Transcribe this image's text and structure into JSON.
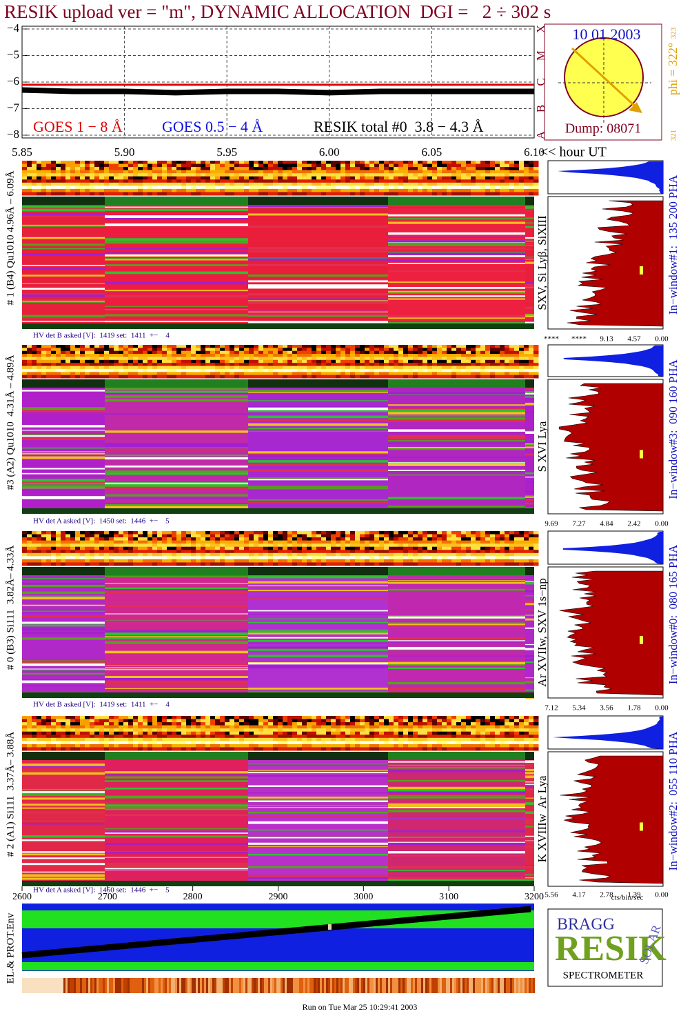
{
  "title": "RESIK upload ver = \"m\", DYNAMIC ALLOCATION  DGI =   2 ÷ 302 s",
  "goes": {
    "ylim": [
      -8,
      -4
    ],
    "yticks": [
      {
        "value": -4,
        "label": "−4"
      },
      {
        "value": -5,
        "label": "−5"
      },
      {
        "value": -6,
        "label": "−6"
      },
      {
        "value": -7,
        "label": "−7"
      },
      {
        "value": -8,
        "label": "−8"
      }
    ],
    "class_letters": [
      "X",
      "M",
      "C",
      "B",
      "A"
    ],
    "grid": true,
    "x": [
      5.85,
      5.875,
      5.9,
      5.925,
      5.95,
      5.975,
      6.0,
      6.025,
      6.05,
      6.075,
      6.1
    ],
    "series": [
      {
        "name": "GOES 1 − 8 Å",
        "color": "#e00000",
        "values": [
          -6.1,
          -6.1,
          -6.1,
          -6.1,
          -6.1,
          -6.1,
          -6.1,
          -6.1,
          -6.1,
          -6.1,
          -6.1
        ]
      },
      {
        "name": "GOES 0.5 − 4 Å",
        "color": "#1010e0",
        "values": [
          null,
          null,
          null,
          null,
          null,
          null,
          null,
          null,
          null,
          null,
          null
        ]
      },
      {
        "name": "RESIK total #0  3.8 − 4.3 Å",
        "color": "#000000",
        "values": [
          -6.3,
          -6.35,
          -6.35,
          -6.4,
          -6.35,
          -6.35,
          -6.4,
          -6.35,
          -6.35,
          -6.35,
          -6.35
        ]
      }
    ]
  },
  "time_axis": {
    "xlim": [
      5.85,
      6.1
    ],
    "xticks": [
      5.85,
      {
        "value": 5.9,
        "label": "5.90"
      },
      5.95,
      {
        "value": 6,
        "label": "6.00"
      },
      6.05,
      {
        "value": 6.1,
        "label": "6.10"
      }
    ],
    "unit": "<< hour UT"
  },
  "sun": {
    "date": "10 01 2003",
    "dump": "Dump: 08071",
    "phi": "phi = 322°",
    "phi_max": "323",
    "phi_min": "321"
  },
  "panels": [
    {
      "label": "# 1 (B4) Qu1010 4.96Å – 6.09Å",
      "lines": "SXV, Si Lyβ, SiXIII",
      "window": "In−window#1:  135 200 PHA",
      "hv": "HV det B asked [V]:  1419 set:  1411  +−    4",
      "pha_ticks": [
        "****",
        "****",
        9.13,
        4.57,
        {
          "value": 0,
          "label": "0.00"
        }
      ]
    },
    {
      "label": "#3 (A2) Qu1010  4.31Å – 4.89Å",
      "lines": "S XVI Lya",
      "window": "In−window#3:  090 160 PHA",
      "hv": "HV det A asked [V]:  1450 set:  1446  +−    5",
      "pha_ticks": [
        9.69,
        7.27,
        4.84,
        2.42,
        {
          "value": 0,
          "label": "0.00"
        }
      ]
    },
    {
      "label": "# 0 (B3) Si111  3.82Å– 4.33Å",
      "lines": "Ar XVIIw, SXV 1s−np",
      "window": "In−window#0:  080 165 PHA",
      "hv": "HV det B asked [V]:  1419 set:  1411  +−    4",
      "pha_ticks": [
        7.12,
        5.34,
        3.56,
        1.78,
        {
          "value": 0,
          "label": "0.00"
        }
      ]
    },
    {
      "label": "# 2 (A1) Si111  3.37Å– 3.88Å",
      "lines": "K XVIIIw  Ar Lya",
      "window": "In−window#2:  055 110 PHA",
      "hv": "HV det A asked [V]:  1450 set:  1446  +−    5",
      "pha_ticks": [
        5.56,
        4.17,
        2.78,
        1.39,
        {
          "value": 0,
          "label": "0.00"
        }
      ]
    }
  ],
  "pha_units": "cts/bin/sec",
  "env": {
    "xlim": [
      2600,
      3200
    ],
    "xticks": [
      2600,
      2700,
      2800,
      2900,
      3000,
      3100,
      3200
    ],
    "label": "EL.& PROT.Env"
  },
  "logo": {
    "top": "BRAGG",
    "main": "RESIK",
    "side": "SOLAR",
    "bottom": "SPECTROMETER"
  },
  "footer": "Run on Tue Mar 25 10:29:41 2003"
}
